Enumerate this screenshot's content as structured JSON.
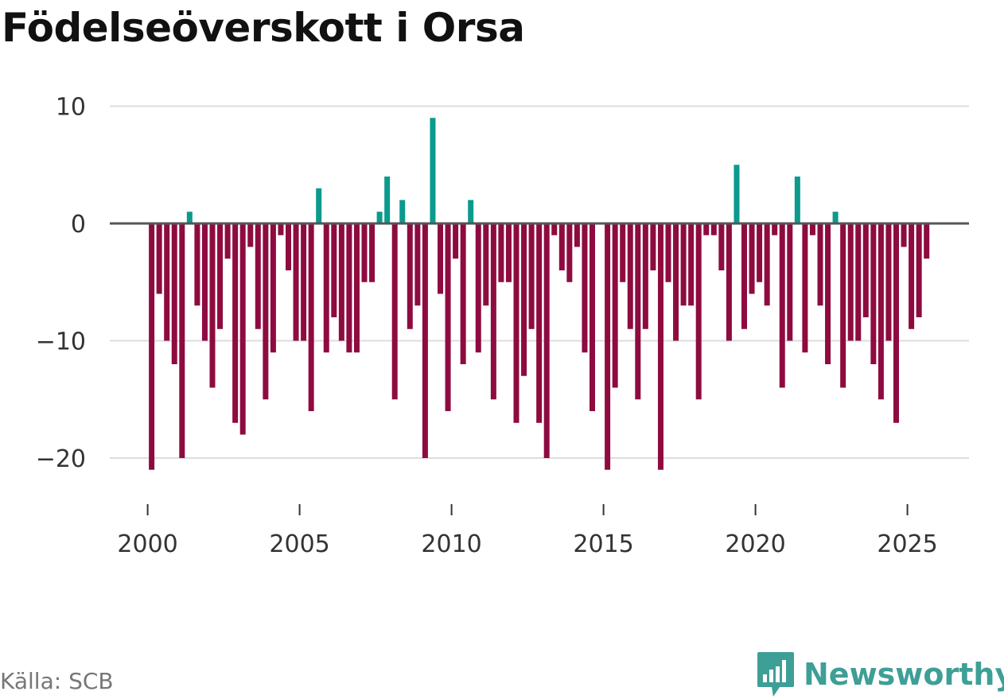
{
  "title": "Födelseöverskott i Orsa",
  "source": "Källa: SCB",
  "brand": "Newsworthy",
  "colors": {
    "positive": "#0b9a8d",
    "negative": "#8e0b40",
    "brand": "#3e9f97"
  },
  "chart_data": {
    "type": "bar",
    "title": "Födelseöverskott i Orsa",
    "xlabel": "",
    "ylabel": "",
    "ylim": [
      -24,
      10
    ],
    "yticks": [
      10,
      0,
      -10,
      -20
    ],
    "ytick_labels": [
      "10",
      "0",
      "−10",
      "−20"
    ],
    "xticks": [
      2000,
      2005,
      2010,
      2015,
      2020,
      2025
    ],
    "xtick_labels": [
      "2000",
      "2005",
      "2010",
      "2015",
      "2020",
      "2025"
    ],
    "start_year": 2000,
    "periods_per_year": 4,
    "values": [
      -21,
      -6,
      -10,
      -12,
      -20,
      1,
      -7,
      -10,
      -14,
      -9,
      -3,
      -17,
      -18,
      -2,
      -9,
      -15,
      -11,
      -1,
      -4,
      -10,
      -10,
      -16,
      3,
      -11,
      -8,
      -10,
      -11,
      -11,
      -5,
      -5,
      1,
      4,
      -15,
      2,
      -9,
      -7,
      -20,
      9,
      -6,
      -16,
      -3,
      -12,
      2,
      -11,
      -7,
      -15,
      -5,
      -5,
      -17,
      -13,
      -9,
      -17,
      -20,
      -1,
      -4,
      -5,
      -2,
      -11,
      -16,
      0,
      -21,
      -14,
      -5,
      -9,
      -15,
      -9,
      -4,
      -21,
      -5,
      -10,
      -7,
      -7,
      -15,
      -1,
      -1,
      -4,
      -10,
      5,
      -9,
      -6,
      -5,
      -7,
      -1,
      -14,
      -10,
      4,
      -11,
      -1,
      -7,
      -12,
      1,
      -14,
      -10,
      -10,
      -8,
      -12,
      -15,
      -10,
      -17,
      -2,
      -9,
      -8,
      -3
    ]
  }
}
